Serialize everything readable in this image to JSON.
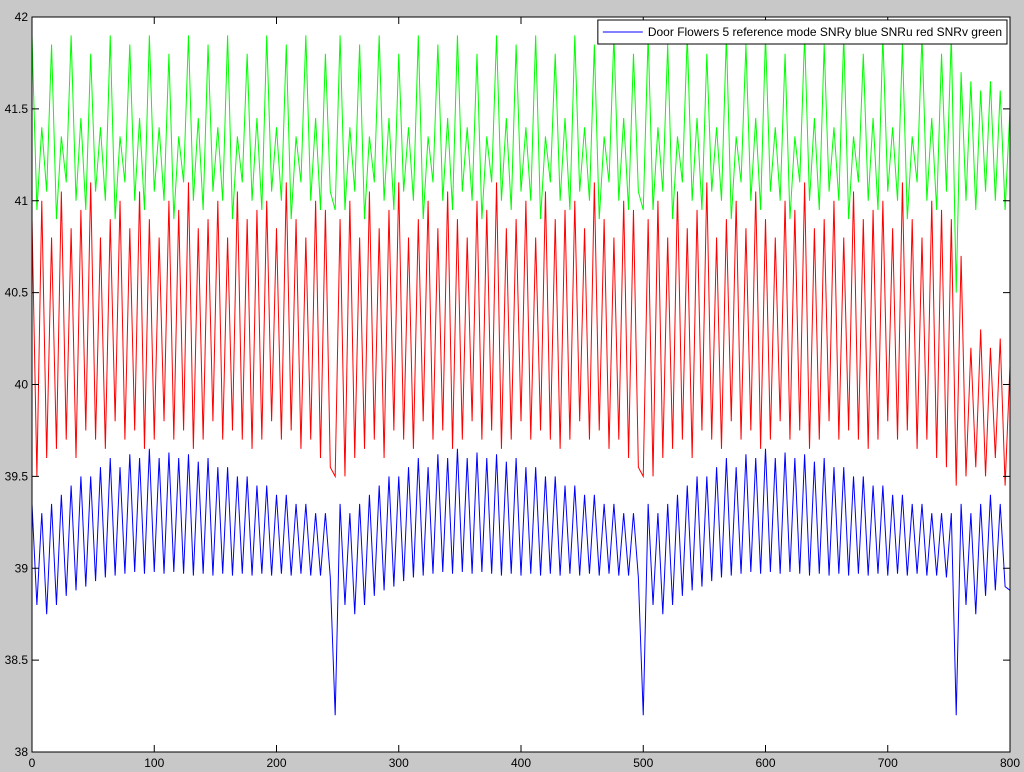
{
  "chart_data": {
    "type": "line",
    "xlim": [
      0,
      800
    ],
    "ylim": [
      38,
      42
    ],
    "xticks": [
      0,
      100,
      200,
      300,
      400,
      500,
      600,
      700,
      800
    ],
    "yticks": [
      38,
      38.5,
      39,
      39.5,
      40,
      40.5,
      41,
      41.5,
      42
    ],
    "grid": false,
    "legend": "upper right",
    "x": [
      0,
      4,
      8,
      12,
      16,
      20,
      24,
      28,
      32,
      36,
      40,
      44,
      48,
      52,
      56,
      60,
      64,
      68,
      72,
      76,
      80,
      84,
      88,
      92,
      96,
      100,
      104,
      108,
      112,
      116,
      120,
      124,
      128,
      132,
      136,
      140,
      144,
      148,
      152,
      156,
      160,
      164,
      168,
      172,
      176,
      180,
      184,
      188,
      192,
      196,
      200,
      204,
      208,
      212,
      216,
      220,
      224,
      228,
      232,
      236,
      240,
      244,
      248,
      252,
      256,
      260,
      264,
      268,
      272,
      276,
      280,
      284,
      288,
      292,
      296,
      300,
      304,
      308,
      312,
      316,
      320,
      324,
      328,
      332,
      336,
      340,
      344,
      348,
      352,
      356,
      360,
      364,
      368,
      372,
      376,
      380,
      384,
      388,
      392,
      396,
      400,
      404,
      408,
      412,
      416,
      420,
      424,
      428,
      432,
      436,
      440,
      444,
      448,
      452,
      456,
      460,
      464,
      468,
      472,
      476,
      480,
      484,
      488,
      492,
      496,
      500,
      504,
      508,
      512,
      516,
      520,
      524,
      528,
      532,
      536,
      540,
      544,
      548,
      552,
      556,
      560,
      564,
      568,
      572,
      576,
      580,
      584,
      588,
      592,
      596,
      600,
      604,
      608,
      612,
      616,
      620,
      624,
      628,
      632,
      636,
      640,
      644,
      648,
      652,
      656,
      660,
      664,
      668,
      672,
      676,
      680,
      684,
      688,
      692,
      696,
      700,
      704,
      708,
      712,
      716,
      720,
      724,
      728,
      732,
      736,
      740,
      744,
      748,
      752,
      756,
      760,
      764,
      768,
      772,
      776,
      780,
      784,
      788,
      792,
      796,
      800
    ],
    "series": [
      {
        "name": "Door Flowers 5 reference mode SNRy blue SNRu red SNRv green",
        "color": "#0000ff",
        "values": [
          39.35,
          38.8,
          39.3,
          38.75,
          39.35,
          38.8,
          39.4,
          38.85,
          39.45,
          38.88,
          39.5,
          38.9,
          39.5,
          38.93,
          39.55,
          38.95,
          39.6,
          38.96,
          39.55,
          38.97,
          39.62,
          38.98,
          39.6,
          38.97,
          39.65,
          38.98,
          39.6,
          38.97,
          39.63,
          38.98,
          39.6,
          38.97,
          39.62,
          38.96,
          39.58,
          38.97,
          39.6,
          38.96,
          39.55,
          38.97,
          39.55,
          38.96,
          39.5,
          38.97,
          39.5,
          38.96,
          39.45,
          38.97,
          39.45,
          38.96,
          39.4,
          38.97,
          39.4,
          38.96,
          39.35,
          38.97,
          39.35,
          38.96,
          39.3,
          38.96,
          39.3,
          38.95,
          38.2,
          39.35,
          38.8,
          39.3,
          38.75,
          39.35,
          38.8,
          39.4,
          38.85,
          39.45,
          38.88,
          39.5,
          38.9,
          39.5,
          38.93,
          39.55,
          38.95,
          39.6,
          38.96,
          39.55,
          38.97,
          39.62,
          38.98,
          39.6,
          38.97,
          39.65,
          38.98,
          39.6,
          38.97,
          39.63,
          38.98,
          39.6,
          38.97,
          39.62,
          38.96,
          39.58,
          38.97,
          39.6,
          38.96,
          39.55,
          38.97,
          39.55,
          38.96,
          39.5,
          38.97,
          39.5,
          38.96,
          39.45,
          38.97,
          39.45,
          38.96,
          39.4,
          38.97,
          39.4,
          38.96,
          39.35,
          38.97,
          39.35,
          38.96,
          39.3,
          38.96,
          39.3,
          38.95,
          38.2,
          39.35,
          38.8,
          39.3,
          38.75,
          39.35,
          38.8,
          39.4,
          38.85,
          39.45,
          38.88,
          39.5,
          38.9,
          39.5,
          38.93,
          39.55,
          38.95,
          39.6,
          38.96,
          39.55,
          38.97,
          39.62,
          38.98,
          39.6,
          38.97,
          39.65,
          38.98,
          39.6,
          38.97,
          39.63,
          38.98,
          39.6,
          38.97,
          39.62,
          38.96,
          39.58,
          38.97,
          39.6,
          38.96,
          39.55,
          38.97,
          39.55,
          38.96,
          39.5,
          38.97,
          39.5,
          38.96,
          39.45,
          38.97,
          39.45,
          38.96,
          39.4,
          38.97,
          39.4,
          38.96,
          39.35,
          38.97,
          39.35,
          38.96,
          39.3,
          38.96,
          39.3,
          38.95,
          39.3,
          38.2,
          39.35,
          38.8,
          39.3,
          38.75,
          39.35,
          38.85,
          39.4,
          38.88,
          39.35,
          38.9,
          38.88
        ]
      },
      {
        "color": "#ff0000",
        "values": [
          40.9,
          39.5,
          41.0,
          39.6,
          40.8,
          39.65,
          41.05,
          39.7,
          40.85,
          39.6,
          40.95,
          39.75,
          41.1,
          39.7,
          40.8,
          39.65,
          40.9,
          39.8,
          41.0,
          39.7,
          40.85,
          39.75,
          41.05,
          39.65,
          40.9,
          39.7,
          40.8,
          39.8,
          41.0,
          39.7,
          40.95,
          39.75,
          41.1,
          39.65,
          40.85,
          39.7,
          40.9,
          39.8,
          41.0,
          39.7,
          40.8,
          39.75,
          41.05,
          39.7,
          40.9,
          39.65,
          40.95,
          39.7,
          41.0,
          39.8,
          40.85,
          39.7,
          41.1,
          39.75,
          40.9,
          39.65,
          40.8,
          39.7,
          41.0,
          39.6,
          40.95,
          39.55,
          39.5,
          40.9,
          39.5,
          41.0,
          39.6,
          40.8,
          39.65,
          41.05,
          39.7,
          40.85,
          39.6,
          40.95,
          39.75,
          41.1,
          39.7,
          40.8,
          39.65,
          40.9,
          39.8,
          41.0,
          39.7,
          40.85,
          39.75,
          41.05,
          39.65,
          40.9,
          39.7,
          40.8,
          39.8,
          41.0,
          39.7,
          40.95,
          39.75,
          41.1,
          39.65,
          40.85,
          39.7,
          40.9,
          39.8,
          41.0,
          39.7,
          40.8,
          39.75,
          41.05,
          39.7,
          40.9,
          39.65,
          40.95,
          39.7,
          41.0,
          39.8,
          40.85,
          39.7,
          41.1,
          39.75,
          40.9,
          39.65,
          40.8,
          39.7,
          41.0,
          39.6,
          40.95,
          39.55,
          39.5,
          40.9,
          39.5,
          41.0,
          39.6,
          40.8,
          39.65,
          41.05,
          39.7,
          40.85,
          39.6,
          40.95,
          39.75,
          41.1,
          39.7,
          40.8,
          39.65,
          40.9,
          39.8,
          41.0,
          39.7,
          40.85,
          39.75,
          41.05,
          39.65,
          40.9,
          39.7,
          40.8,
          39.8,
          41.0,
          39.7,
          40.95,
          39.75,
          41.1,
          39.65,
          40.85,
          39.7,
          40.9,
          39.8,
          41.0,
          39.7,
          40.8,
          39.75,
          41.05,
          39.7,
          40.9,
          39.65,
          40.95,
          39.7,
          41.0,
          39.8,
          40.85,
          39.7,
          41.1,
          39.75,
          40.9,
          39.65,
          40.8,
          39.7,
          41.0,
          39.6,
          40.95,
          39.55,
          40.9,
          39.45,
          40.7,
          39.5,
          40.2,
          39.55,
          40.3,
          39.5,
          40.2,
          39.6,
          40.25,
          39.45,
          40.1
        ]
      },
      {
        "color": "#00ff00",
        "values": [
          41.9,
          40.95,
          41.4,
          41.05,
          41.85,
          40.9,
          41.35,
          41.1,
          41.9,
          41.0,
          41.45,
          40.95,
          41.8,
          41.05,
          41.4,
          41.0,
          41.9,
          40.9,
          41.35,
          41.1,
          41.85,
          41.0,
          41.45,
          40.95,
          41.9,
          41.05,
          41.4,
          41.0,
          41.8,
          40.9,
          41.35,
          41.1,
          41.9,
          41.0,
          41.45,
          40.95,
          41.85,
          41.05,
          41.4,
          41.0,
          41.9,
          40.9,
          41.35,
          41.1,
          41.8,
          41.0,
          41.45,
          40.95,
          41.9,
          41.05,
          41.4,
          41.0,
          41.85,
          40.9,
          41.35,
          41.1,
          41.9,
          41.0,
          41.45,
          40.95,
          41.8,
          41.05,
          40.95,
          41.9,
          40.95,
          41.4,
          41.05,
          41.85,
          40.9,
          41.35,
          41.1,
          41.9,
          41.0,
          41.45,
          40.95,
          41.8,
          41.05,
          41.4,
          41.0,
          41.9,
          40.9,
          41.35,
          41.1,
          41.85,
          41.0,
          41.45,
          40.95,
          41.9,
          41.05,
          41.4,
          41.0,
          41.8,
          40.9,
          41.35,
          41.1,
          41.9,
          41.0,
          41.45,
          40.95,
          41.85,
          41.05,
          41.4,
          41.0,
          41.9,
          40.9,
          41.35,
          41.1,
          41.8,
          41.0,
          41.45,
          40.95,
          41.9,
          41.05,
          41.4,
          41.0,
          41.85,
          40.9,
          41.35,
          41.1,
          41.9,
          41.0,
          41.45,
          40.95,
          41.8,
          41.05,
          40.95,
          41.9,
          40.95,
          41.4,
          41.05,
          41.85,
          40.9,
          41.35,
          41.1,
          41.9,
          41.0,
          41.45,
          40.95,
          41.8,
          41.05,
          41.4,
          41.0,
          41.9,
          40.9,
          41.35,
          41.1,
          41.85,
          41.0,
          41.45,
          40.95,
          41.9,
          41.05,
          41.4,
          41.0,
          41.8,
          40.9,
          41.35,
          41.1,
          41.9,
          41.0,
          41.45,
          40.95,
          41.85,
          41.05,
          41.4,
          41.0,
          41.9,
          40.9,
          41.35,
          41.1,
          41.8,
          41.0,
          41.45,
          40.95,
          41.9,
          41.05,
          41.4,
          41.0,
          41.85,
          40.9,
          41.35,
          41.1,
          41.9,
          41.0,
          41.45,
          40.95,
          41.8,
          41.05,
          41.9,
          40.5,
          41.7,
          41.0,
          41.65,
          40.95,
          41.6,
          41.05,
          41.65,
          41.0,
          41.6,
          40.95,
          41.5
        ]
      }
    ]
  }
}
